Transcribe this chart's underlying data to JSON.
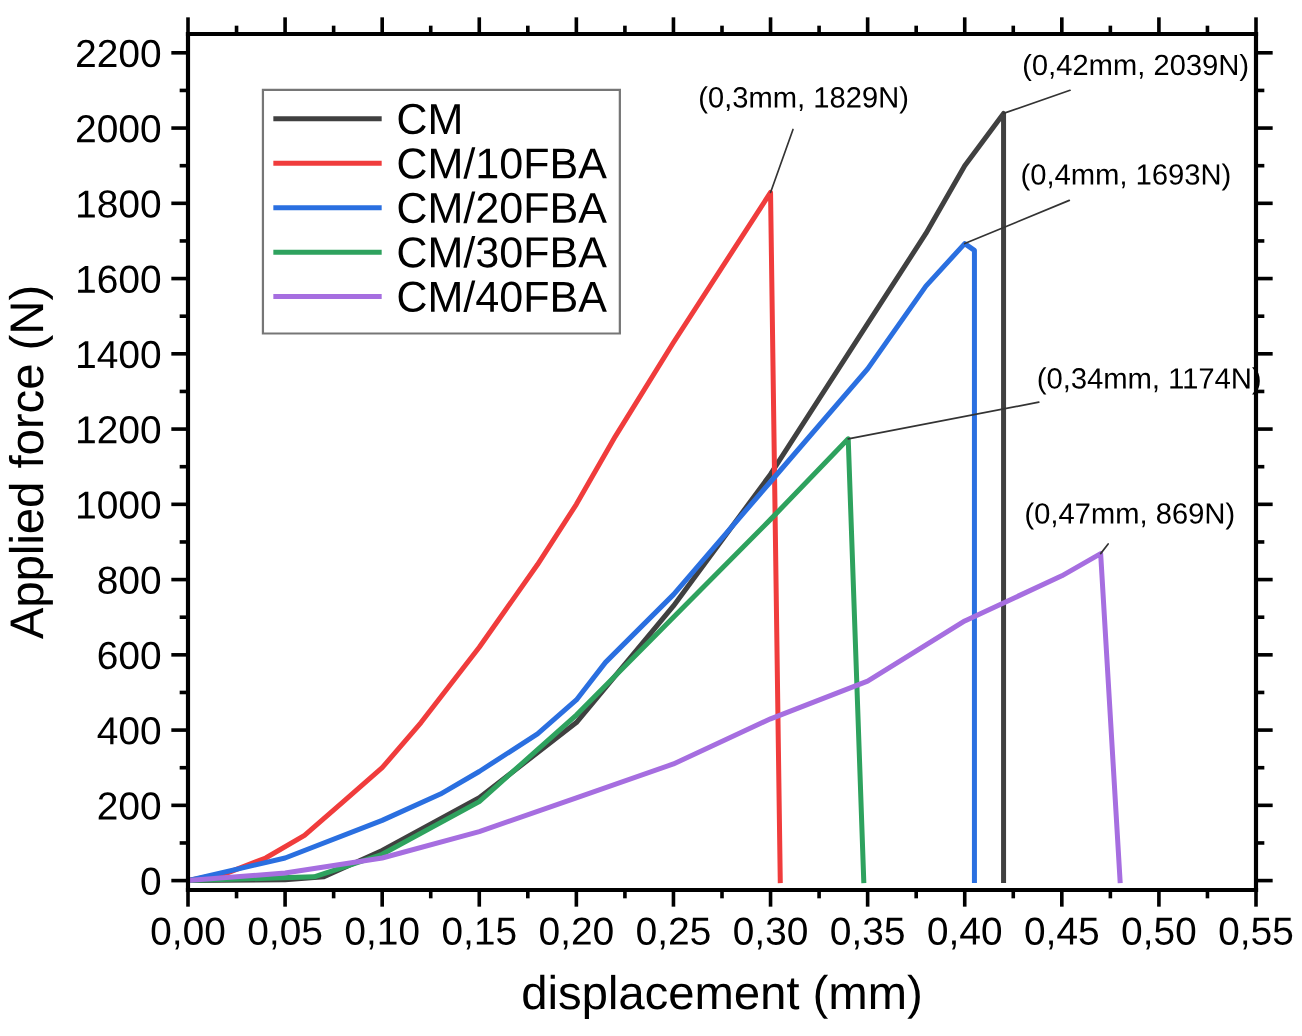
{
  "chart_data": {
    "type": "line",
    "xlabel": "displacement (mm)",
    "ylabel": "Applied force (N)",
    "xlim": [
      0,
      0.55
    ],
    "ylim": [
      -25,
      2250
    ],
    "xticks": [
      {
        "value": 0,
        "label": "0,00"
      },
      {
        "value": 0.05,
        "label": "0,05"
      },
      {
        "value": 0.1,
        "label": "0,10"
      },
      {
        "value": 0.15,
        "label": "0,15"
      },
      {
        "value": 0.2,
        "label": "0,20"
      },
      {
        "value": 0.25,
        "label": "0,25"
      },
      {
        "value": 0.3,
        "label": "0,30"
      },
      {
        "value": 0.35,
        "label": "0,35"
      },
      {
        "value": 0.4,
        "label": "0,40"
      },
      {
        "value": 0.45,
        "label": "0,45"
      },
      {
        "value": 0.5,
        "label": "0,50"
      },
      {
        "value": 0.55,
        "label": "0,55"
      }
    ],
    "yticks": [
      0,
      200,
      400,
      600,
      800,
      1000,
      1200,
      1400,
      1600,
      1800,
      2000,
      2200
    ],
    "legend": "top left",
    "grid": false,
    "marker": "none",
    "line_style": "solid",
    "series": [
      {
        "name": "CM",
        "color": "#404040",
        "x": [
          0,
          0.05,
          0.07,
          0.1,
          0.15,
          0.2,
          0.25,
          0.3,
          0.35,
          0.38,
          0.4,
          0.42,
          0.42
        ],
        "values": [
          0,
          2,
          10,
          80,
          220,
          420,
          730,
          1080,
          1480,
          1720,
          1900,
          2039,
          0
        ]
      },
      {
        "name": "CM/10FBA",
        "color": "#f03c3c",
        "x": [
          0,
          0.02,
          0.04,
          0.06,
          0.08,
          0.1,
          0.12,
          0.15,
          0.18,
          0.2,
          0.22,
          0.25,
          0.3,
          0.305
        ],
        "values": [
          0,
          20,
          60,
          120,
          210,
          300,
          420,
          620,
          840,
          1000,
          1180,
          1430,
          1829,
          0
        ]
      },
      {
        "name": "CM/20FBA",
        "color": "#2a6fe0",
        "x": [
          0,
          0.05,
          0.1,
          0.13,
          0.15,
          0.18,
          0.2,
          0.215,
          0.25,
          0.3,
          0.35,
          0.38,
          0.4,
          0.405,
          0.405
        ],
        "values": [
          0,
          60,
          160,
          230,
          290,
          390,
          480,
          580,
          760,
          1060,
          1360,
          1580,
          1693,
          1675,
          0
        ]
      },
      {
        "name": "CM/30FBA",
        "color": "#2ea25e",
        "x": [
          0,
          0.065,
          0.1,
          0.15,
          0.2,
          0.25,
          0.3,
          0.34,
          0.348
        ],
        "values": [
          0,
          10,
          70,
          210,
          440,
          700,
          960,
          1174,
          0
        ]
      },
      {
        "name": "CM/40FBA",
        "color": "#a66ee0",
        "x": [
          0,
          0.05,
          0.1,
          0.15,
          0.2,
          0.25,
          0.3,
          0.35,
          0.4,
          0.45,
          0.47,
          0.48
        ],
        "values": [
          0,
          20,
          60,
          130,
          220,
          310,
          430,
          530,
          690,
          810,
          869,
          0
        ]
      }
    ],
    "annotations": [
      {
        "text": "(0,42mm, 2039N)",
        "x": 0.42,
        "y": 2039
      },
      {
        "text": "(0,3mm, 1829N)",
        "x": 0.3,
        "y": 1829
      },
      {
        "text": "(0,4mm, 1693N)",
        "x": 0.4,
        "y": 1693
      },
      {
        "text": "(0,34mm, 1174N)",
        "x": 0.34,
        "y": 1174
      },
      {
        "text": "(0,47mm, 869N)",
        "x": 0.47,
        "y": 869
      }
    ]
  }
}
